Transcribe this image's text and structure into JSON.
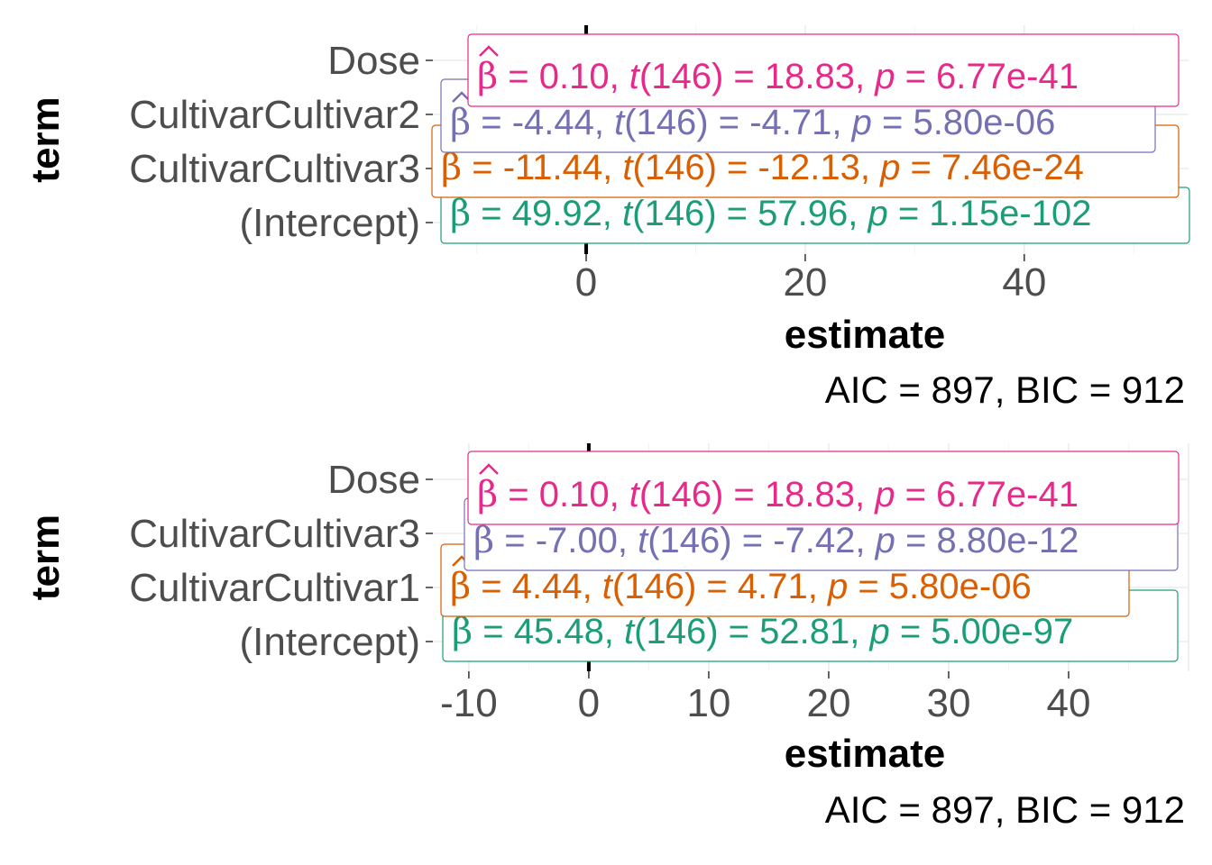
{
  "chart_data": [
    {
      "type": "scatter",
      "xlabel": "estimate",
      "ylabel": "term",
      "xlim": [
        -14,
        55
      ],
      "x_ticks": [
        "0",
        "20",
        "40"
      ],
      "terms": [
        "(Intercept)",
        "CultivarCultivar3",
        "CultivarCultivar2",
        "Dose"
      ],
      "estimates": [
        49.92,
        -11.44,
        -4.44,
        0.1
      ],
      "labels": [
        {
          "term": "(Intercept)",
          "beta": "49.92",
          "df": "146",
          "t": "57.96",
          "p": "1.15e-102",
          "color": "#1b9e77"
        },
        {
          "term": "CultivarCultivar3",
          "beta": "-11.44",
          "df": "146",
          "t": "-12.13",
          "p": "7.46e-24",
          "color": "#d95f02"
        },
        {
          "term": "CultivarCultivar2",
          "beta": "-4.44",
          "df": "146",
          "t": "-4.71",
          "p": "5.80e-06",
          "color": "#7570b3"
        },
        {
          "term": "Dose",
          "beta": "0.10",
          "df": "146",
          "t": "18.83",
          "p": "6.77e-41",
          "color": "#e7298a"
        }
      ],
      "caption": {
        "aic": "897",
        "bic": "912"
      }
    },
    {
      "type": "scatter",
      "xlabel": "estimate",
      "ylabel": "term",
      "xlim": [
        -13,
        50
      ],
      "x_ticks": [
        "-10",
        "0",
        "10",
        "20",
        "30",
        "40"
      ],
      "terms": [
        "(Intercept)",
        "CultivarCultivar1",
        "CultivarCultivar3",
        "Dose"
      ],
      "estimates": [
        45.48,
        4.44,
        -7.0,
        0.1
      ],
      "labels": [
        {
          "term": "(Intercept)",
          "beta": "45.48",
          "df": "146",
          "t": "52.81",
          "p": "5.00e-97",
          "color": "#1b9e77"
        },
        {
          "term": "CultivarCultivar1",
          "beta": "4.44",
          "df": "146",
          "t": "4.71",
          "p": "5.80e-06",
          "color": "#d95f02"
        },
        {
          "term": "CultivarCultivar3",
          "beta": "-7.00",
          "df": "146",
          "t": "-7.42",
          "p": "8.80e-12",
          "color": "#7570b3"
        },
        {
          "term": "Dose",
          "beta": "0.10",
          "df": "146",
          "t": "18.83",
          "p": "6.77e-41",
          "color": "#e7298a"
        }
      ],
      "caption": {
        "aic": "897",
        "bic": "912"
      }
    }
  ]
}
